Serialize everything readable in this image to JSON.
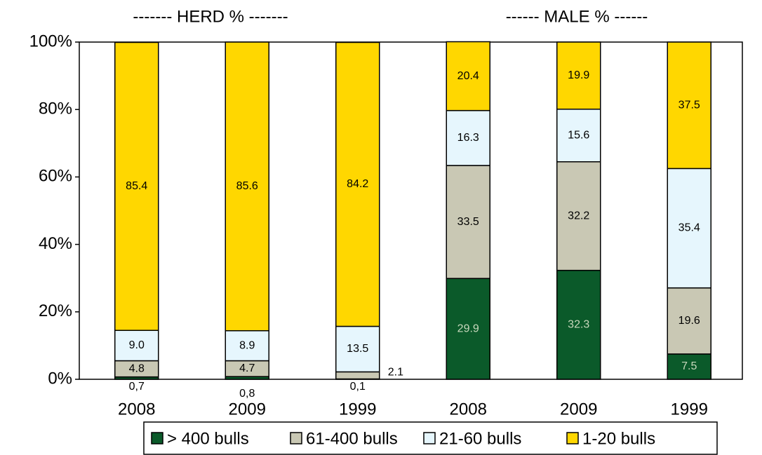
{
  "chart_data": {
    "type": "stacked-bar",
    "annotations": [
      "------- HERD % -------",
      "------ MALE % ------"
    ],
    "categories": [
      "2008",
      "2009",
      "1999",
      "2008",
      "2009",
      "1999"
    ],
    "series": [
      {
        "name": "> 400 bulls",
        "color": "#0b5a2a",
        "values": [
          0.7,
          0.8,
          0.1,
          29.9,
          32.3,
          7.5
        ],
        "value_labels": [
          "0,7",
          "0,8",
          "0,1",
          "29.9",
          "32.3",
          "7.5"
        ]
      },
      {
        "name": "61-400 bulls",
        "color": "#c9c8b4",
        "values": [
          4.8,
          4.7,
          2.1,
          33.5,
          32.2,
          19.6
        ],
        "value_labels": [
          "4.8",
          "4.7",
          "2.1",
          "33.5",
          "32.2",
          "19.6"
        ]
      },
      {
        "name": "21-60 bulls",
        "color": "#e6f6fd",
        "values": [
          9.0,
          8.9,
          13.5,
          16.3,
          15.6,
          35.4
        ],
        "value_labels": [
          "9.0",
          "8.9",
          "13.5",
          "16.3",
          "15.6",
          "35.4"
        ]
      },
      {
        "name": "1-20 bulls",
        "color": "#ffd700",
        "values": [
          85.4,
          85.6,
          84.2,
          20.4,
          19.9,
          37.5
        ],
        "value_labels": [
          "85.4",
          "85.6",
          "84.2",
          "20.4",
          "19.9",
          "37.5"
        ]
      }
    ],
    "ylim": [
      0,
      100
    ],
    "yticks": [
      {
        "value": 0,
        "label": "0%"
      },
      {
        "value": 20,
        "label": "20%"
      },
      {
        "value": 40,
        "label": "40%"
      },
      {
        "value": 60,
        "label": "60%"
      },
      {
        "value": 80,
        "label": "80%"
      },
      {
        "value": 100,
        "label": "100%"
      }
    ],
    "legend": "bottom"
  }
}
